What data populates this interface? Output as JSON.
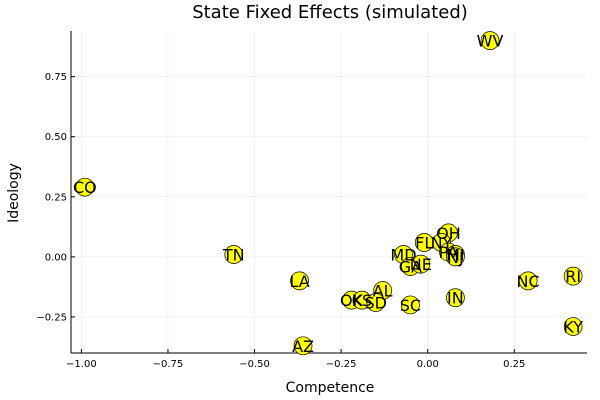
{
  "chart_data": {
    "type": "scatter",
    "title": "State Fixed Effects (simulated)",
    "xlabel": "Competence",
    "ylabel": "Ideology",
    "xlim": [
      -1.03,
      0.46
    ],
    "ylim": [
      -0.4,
      0.94
    ],
    "xticks": [
      -1.0,
      -0.75,
      -0.5,
      -0.25,
      0.0,
      0.25
    ],
    "xtick_labels": [
      "−1.00",
      "−0.75",
      "−0.50",
      "−0.25",
      "0.00",
      "0.25"
    ],
    "yticks": [
      -0.25,
      0.0,
      0.25,
      0.5,
      0.75
    ],
    "ytick_labels": [
      "−0.25",
      "0.00",
      "0.25",
      "0.50",
      "0.75"
    ],
    "grid": true,
    "legend": "none",
    "marker_color": "#ffff00",
    "points": [
      {
        "label": "WV",
        "x": 0.18,
        "y": 0.9
      },
      {
        "label": "CO",
        "x": -0.99,
        "y": 0.29
      },
      {
        "label": "TN",
        "x": -0.56,
        "y": 0.01
      },
      {
        "label": "OH",
        "x": 0.06,
        "y": 0.1
      },
      {
        "label": "FL",
        "x": -0.01,
        "y": 0.06
      },
      {
        "label": "NY",
        "x": 0.04,
        "y": 0.06
      },
      {
        "label": "PA",
        "x": 0.06,
        "y": 0.02
      },
      {
        "label": "MI",
        "x": 0.08,
        "y": 0.01
      },
      {
        "label": "NJ",
        "x": 0.08,
        "y": 0.0
      },
      {
        "label": "MD",
        "x": -0.07,
        "y": 0.01
      },
      {
        "label": "GA",
        "x": -0.05,
        "y": -0.04
      },
      {
        "label": "NE",
        "x": -0.02,
        "y": -0.03
      },
      {
        "label": "NC",
        "x": 0.29,
        "y": -0.1
      },
      {
        "label": "RI",
        "x": 0.42,
        "y": -0.08
      },
      {
        "label": "LA",
        "x": -0.37,
        "y": -0.1
      },
      {
        "label": "AL",
        "x": -0.13,
        "y": -0.14
      },
      {
        "label": "OK",
        "x": -0.22,
        "y": -0.18
      },
      {
        "label": "KS",
        "x": -0.19,
        "y": -0.18
      },
      {
        "label": "SD",
        "x": -0.15,
        "y": -0.19
      },
      {
        "label": "SC",
        "x": -0.05,
        "y": -0.2
      },
      {
        "label": "IN",
        "x": 0.08,
        "y": -0.17
      },
      {
        "label": "KY",
        "x": 0.42,
        "y": -0.29
      },
      {
        "label": "AZ",
        "x": -0.36,
        "y": -0.37
      }
    ]
  }
}
